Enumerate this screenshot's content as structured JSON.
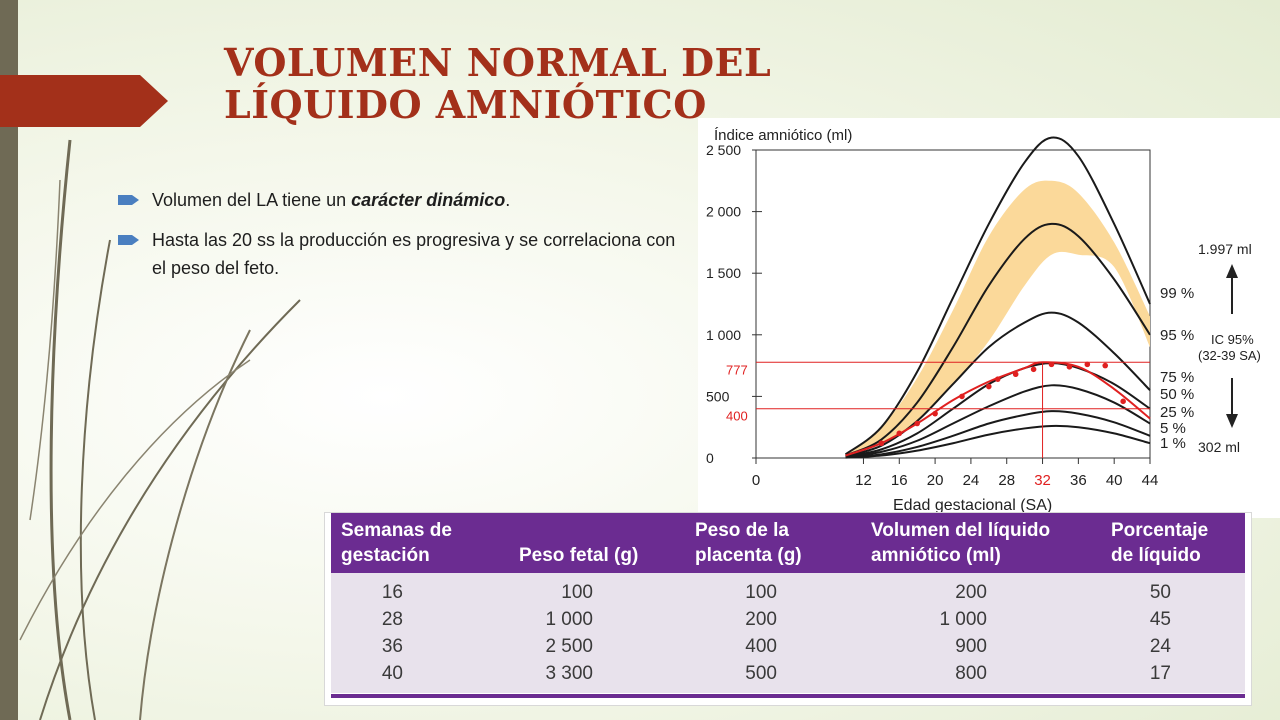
{
  "slide": {
    "title": "VOLUMEN NORMAL DEL LÍQUIDO AMNIÓTICO",
    "bullets": [
      {
        "pre": "Volumen del LA tiene un ",
        "em": "carácter dinámico",
        "post": "."
      },
      {
        "text": "Hasta las 20 ss la producción es progresiva y se correlaciona con el peso del feto."
      }
    ],
    "colors": {
      "title": "#a3301a",
      "accent": "#a3301a",
      "table_header": "#6b2c91",
      "band": "#fbd99a",
      "red_curve": "#e02020"
    }
  },
  "chart_data": {
    "type": "line",
    "ylabel": "Índice amniótico (ml)",
    "xlabel": "Edad gestacional (SA)",
    "x_ticks": [
      "0",
      "12",
      "16",
      "20",
      "24",
      "28",
      "32",
      "36",
      "40",
      "44"
    ],
    "y_ticks": [
      "2 500",
      "2 000",
      "1 500",
      "1 000",
      "500",
      "0"
    ],
    "ylim": [
      0,
      2500
    ],
    "xlim": [
      0,
      44
    ],
    "x": [
      10,
      14,
      18,
      22,
      26,
      30,
      33,
      36,
      40,
      44
    ],
    "series": [
      {
        "name": "99 %",
        "values": [
          30,
          250,
          700,
          1300,
          1900,
          2400,
          2600,
          2450,
          1900,
          1250
        ]
      },
      {
        "name": "95 %",
        "values": [
          20,
          150,
          450,
          900,
          1400,
          1780,
          1900,
          1800,
          1450,
          1000
        ]
      },
      {
        "name": "75 %",
        "values": [
          15,
          100,
          300,
          600,
          900,
          1100,
          1180,
          1100,
          850,
          550
        ]
      },
      {
        "name": "50 %",
        "values": [
          10,
          70,
          200,
          400,
          600,
          730,
          770,
          730,
          600,
          400
        ]
      },
      {
        "name": "25 %",
        "values": [
          8,
          50,
          140,
          280,
          420,
          540,
          590,
          560,
          450,
          280
        ]
      },
      {
        "name": "5 %",
        "values": [
          5,
          30,
          90,
          180,
          280,
          350,
          380,
          360,
          290,
          180
        ]
      },
      {
        "name": "1 %",
        "values": [
          3,
          20,
          60,
          120,
          190,
          240,
          260,
          250,
          200,
          120
        ]
      }
    ],
    "band": {
      "lower": [
        15,
        120,
        300,
        600,
        950,
        1400,
        1650,
        1650,
        1550,
        900
      ],
      "upper": [
        25,
        250,
        650,
        1200,
        1800,
        2180,
        2250,
        2150,
        1750,
        1150
      ]
    },
    "measured_curve": {
      "x": [
        10,
        14,
        18,
        22,
        26,
        30,
        32,
        36,
        40,
        44
      ],
      "values": [
        20,
        120,
        280,
        470,
        620,
        730,
        777,
        740,
        560,
        320
      ]
    },
    "measured_points": {
      "x": [
        14,
        16,
        18,
        20,
        23,
        26,
        27,
        29,
        31,
        33,
        35,
        37,
        39,
        41
      ],
      "values": [
        120,
        200,
        280,
        360,
        500,
        580,
        640,
        680,
        720,
        760,
        740,
        760,
        750,
        460
      ]
    },
    "reference_lines": [
      {
        "label": "777",
        "value": 777
      },
      {
        "label": "400",
        "value": 400
      }
    ],
    "reference_x": {
      "label": "32",
      "value": 32
    },
    "right_labels": [
      "99 %",
      "95 %",
      "75 %",
      "50 %",
      "25 %",
      "5 %",
      "1 %"
    ],
    "annotations": {
      "top": "1.997 ml",
      "ic": "IC 95%",
      "range": "(32-39 SA)",
      "bottom": "302 ml"
    }
  },
  "table": {
    "headers": [
      [
        "Semanas de",
        "gestación"
      ],
      [
        "",
        "Peso fetal (g)"
      ],
      [
        "Peso de la",
        "placenta (g)"
      ],
      [
        "Volumen del líquido",
        "amniótico (ml)"
      ],
      [
        "Porcentaje",
        "de líquido"
      ]
    ],
    "rows": [
      [
        "16",
        "100",
        "100",
        "200",
        "50"
      ],
      [
        "28",
        "1 000",
        "200",
        "1 000",
        "45"
      ],
      [
        "36",
        "2 500",
        "400",
        "900",
        "24"
      ],
      [
        "40",
        "3 300",
        "500",
        "800",
        "17"
      ]
    ]
  }
}
